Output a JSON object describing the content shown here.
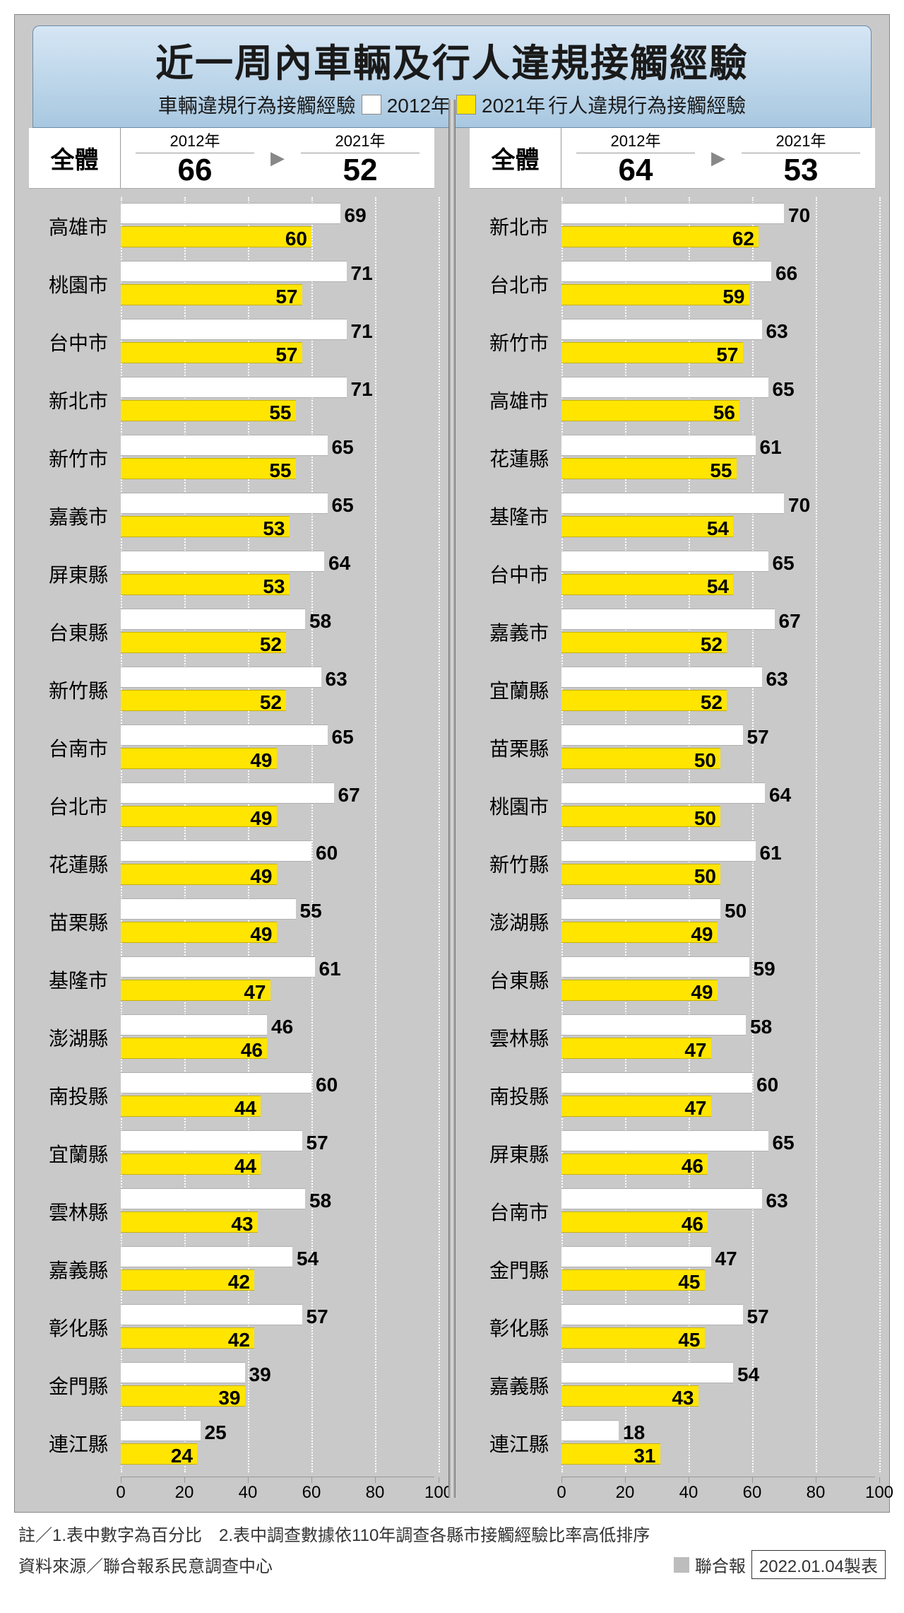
{
  "title": "近一周內車輛及行人違規接觸經驗",
  "legend": {
    "left_label": "車輛違規行為接觸經驗",
    "year2012": "2012年",
    "year2021": "2021年",
    "right_label": "行人違規行為接觸經驗"
  },
  "colors": {
    "color_2012": "#ffffff",
    "color_2021": "#ffe500",
    "border_2012": "#b0b0b0",
    "border_2021": "#c9b200",
    "panel_bg": "#c9c9c9",
    "grid_color": "#ffffff",
    "title_bg_top": "#d6e6f5",
    "title_bg_bottom": "#a8c8e0"
  },
  "axis": {
    "min": 0,
    "max": 100,
    "ticks": [
      0,
      20,
      40,
      60,
      80,
      100
    ]
  },
  "panels": [
    {
      "overall_label": "全體",
      "year1_label": "2012年",
      "year1_value": "66",
      "year2_label": "2021年",
      "year2_value": "52",
      "rows": [
        {
          "label": "高雄市",
          "v2012": 69,
          "v2021": 60
        },
        {
          "label": "桃園市",
          "v2012": 71,
          "v2021": 57
        },
        {
          "label": "台中市",
          "v2012": 71,
          "v2021": 57
        },
        {
          "label": "新北市",
          "v2012": 71,
          "v2021": 55
        },
        {
          "label": "新竹市",
          "v2012": 65,
          "v2021": 55
        },
        {
          "label": "嘉義市",
          "v2012": 65,
          "v2021": 53
        },
        {
          "label": "屏東縣",
          "v2012": 64,
          "v2021": 53
        },
        {
          "label": "台東縣",
          "v2012": 58,
          "v2021": 52
        },
        {
          "label": "新竹縣",
          "v2012": 63,
          "v2021": 52
        },
        {
          "label": "台南市",
          "v2012": 65,
          "v2021": 49
        },
        {
          "label": "台北市",
          "v2012": 67,
          "v2021": 49
        },
        {
          "label": "花蓮縣",
          "v2012": 60,
          "v2021": 49
        },
        {
          "label": "苗栗縣",
          "v2012": 55,
          "v2021": 49
        },
        {
          "label": "基隆市",
          "v2012": 61,
          "v2021": 47
        },
        {
          "label": "澎湖縣",
          "v2012": 46,
          "v2021": 46
        },
        {
          "label": "南投縣",
          "v2012": 60,
          "v2021": 44
        },
        {
          "label": "宜蘭縣",
          "v2012": 57,
          "v2021": 44
        },
        {
          "label": "雲林縣",
          "v2012": 58,
          "v2021": 43
        },
        {
          "label": "嘉義縣",
          "v2012": 54,
          "v2021": 42
        },
        {
          "label": "彰化縣",
          "v2012": 57,
          "v2021": 42
        },
        {
          "label": "金門縣",
          "v2012": 39,
          "v2021": 39
        },
        {
          "label": "連江縣",
          "v2012": 25,
          "v2021": 24
        }
      ]
    },
    {
      "overall_label": "全體",
      "year1_label": "2012年",
      "year1_value": "64",
      "year2_label": "2021年",
      "year2_value": "53",
      "rows": [
        {
          "label": "新北市",
          "v2012": 70,
          "v2021": 62
        },
        {
          "label": "台北市",
          "v2012": 66,
          "v2021": 59
        },
        {
          "label": "新竹市",
          "v2012": 63,
          "v2021": 57
        },
        {
          "label": "高雄市",
          "v2012": 65,
          "v2021": 56
        },
        {
          "label": "花蓮縣",
          "v2012": 61,
          "v2021": 55
        },
        {
          "label": "基隆市",
          "v2012": 70,
          "v2021": 54
        },
        {
          "label": "台中市",
          "v2012": 65,
          "v2021": 54
        },
        {
          "label": "嘉義市",
          "v2012": 67,
          "v2021": 52
        },
        {
          "label": "宜蘭縣",
          "v2012": 63,
          "v2021": 52
        },
        {
          "label": "苗栗縣",
          "v2012": 57,
          "v2021": 50
        },
        {
          "label": "桃園市",
          "v2012": 64,
          "v2021": 50
        },
        {
          "label": "新竹縣",
          "v2012": 61,
          "v2021": 50
        },
        {
          "label": "澎湖縣",
          "v2012": 50,
          "v2021": 49
        },
        {
          "label": "台東縣",
          "v2012": 59,
          "v2021": 49
        },
        {
          "label": "雲林縣",
          "v2012": 58,
          "v2021": 47
        },
        {
          "label": "南投縣",
          "v2012": 60,
          "v2021": 47
        },
        {
          "label": "屏東縣",
          "v2012": 65,
          "v2021": 46
        },
        {
          "label": "台南市",
          "v2012": 63,
          "v2021": 46
        },
        {
          "label": "金門縣",
          "v2012": 47,
          "v2021": 45
        },
        {
          "label": "彰化縣",
          "v2012": 57,
          "v2021": 45
        },
        {
          "label": "嘉義縣",
          "v2012": 54,
          "v2021": 43
        },
        {
          "label": "連江縣",
          "v2012": 18,
          "v2021": 31
        }
      ]
    }
  ],
  "footer": {
    "note1": "註／1.表中數字為百分比　2.表中調查數據依110年調查各縣市接觸經驗比率高低排序",
    "source": "資料來源／聯合報系民意調查中心",
    "publisher": "聯合報",
    "date": "2022.01.04製表"
  }
}
